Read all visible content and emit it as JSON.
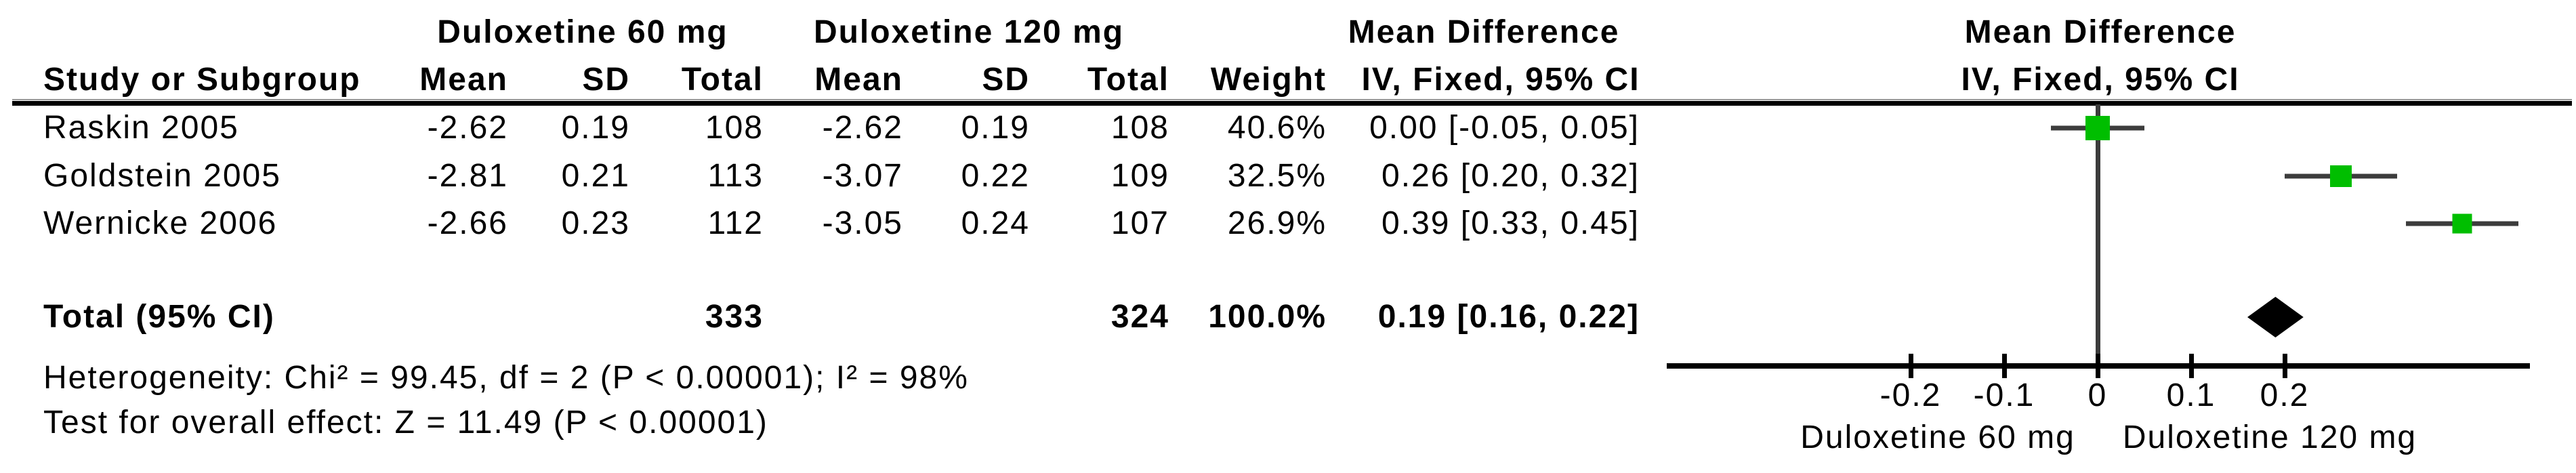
{
  "table": {
    "group1_header": "Duloxetine 60 mg",
    "group2_header": "Duloxetine 120 mg",
    "effect_header": "Mean Difference",
    "study_header": "Study or Subgroup",
    "col_headers": {
      "mean": "Mean",
      "sd": "SD",
      "total": "Total",
      "weight": "Weight",
      "method": "IV, Fixed, 95% CI"
    },
    "rows": [
      {
        "study": "Raskin 2005",
        "mean1": "-2.62",
        "sd1": "0.19",
        "total1": "108",
        "mean2": "-2.62",
        "sd2": "0.19",
        "total2": "108",
        "weight": "40.6%",
        "ci": "0.00 [-0.05, 0.05]"
      },
      {
        "study": "Goldstein 2005",
        "mean1": "-2.81",
        "sd1": "0.21",
        "total1": "113",
        "mean2": "-3.07",
        "sd2": "0.22",
        "total2": "109",
        "weight": "32.5%",
        "ci": "0.26 [0.20, 0.32]"
      },
      {
        "study": "Wernicke 2006",
        "mean1": "-2.66",
        "sd1": "0.23",
        "total1": "112",
        "mean2": "-3.05",
        "sd2": "0.24",
        "total2": "107",
        "weight": "26.9%",
        "ci": "0.39 [0.33, 0.45]"
      }
    ],
    "total_row": {
      "label": "Total (95% CI)",
      "total1": "333",
      "total2": "324",
      "weight": "100.0%",
      "ci": "0.19 [0.16, 0.22]"
    },
    "heterogeneity_text": "Heterogeneity: Chi² = 99.45, df = 2 (P < 0.00001); I² = 98%",
    "overall_effect_text": "Test for overall effect: Z = 11.49 (P < 0.00001)"
  },
  "plot": {
    "header_line1": "Mean Difference",
    "header_line2": "IV, Fixed, 95% CI",
    "tick_labels": [
      "-0.2",
      "-0.1",
      "0",
      "0.1",
      "0.2"
    ],
    "xlabel_left": "Duloxetine 60 mg",
    "xlabel_right": "Duloxetine 120 mg",
    "marker_color": "#00be00",
    "ci_line_color": "#3c3c3c",
    "diamond_color": "#000000"
  },
  "chart_data": {
    "type": "forest",
    "effect_measure": "Mean Difference",
    "method": "IV, Fixed, 95% CI",
    "studies": [
      {
        "name": "Raskin 2005",
        "estimate": 0.0,
        "ci_low": -0.05,
        "ci_high": 0.05,
        "weight_pct": 40.6
      },
      {
        "name": "Goldstein 2005",
        "estimate": 0.26,
        "ci_low": 0.2,
        "ci_high": 0.32,
        "weight_pct": 32.5
      },
      {
        "name": "Wernicke 2006",
        "estimate": 0.39,
        "ci_low": 0.33,
        "ci_high": 0.45,
        "weight_pct": 26.9
      }
    ],
    "total": {
      "estimate": 0.19,
      "ci_low": 0.16,
      "ci_high": 0.22,
      "weight_pct": 100.0
    },
    "axis": {
      "ticks": [
        -0.2,
        -0.1,
        0,
        0.1,
        0.2
      ],
      "xmin": -0.46,
      "xmax": 0.46,
      "grid": false
    },
    "xlabel_left": "Duloxetine 60 mg",
    "xlabel_right": "Duloxetine 120 mg"
  }
}
